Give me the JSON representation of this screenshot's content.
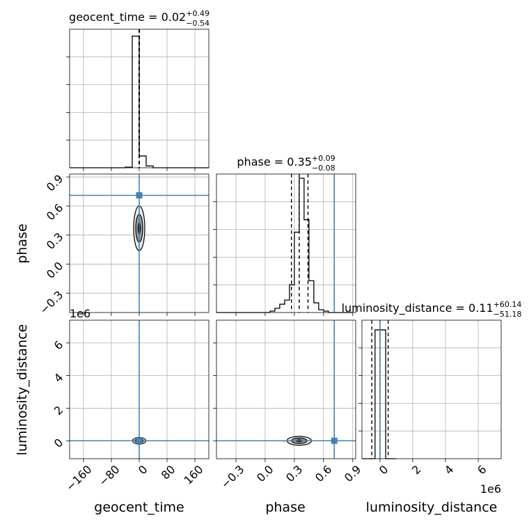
{
  "chart_data": {
    "type": "scatter",
    "subtype": "corner-plot",
    "parameters": [
      {
        "name": "geocent_time",
        "median": 0.02,
        "plus": "+0.49",
        "minus": "−0.54",
        "title_main": "geocent_time = 0.02",
        "ticks": [
          -160,
          -80,
          0,
          80,
          160
        ],
        "tick_labels": [
          "−160",
          "−80",
          "0",
          "80",
          "160"
        ],
        "range": [
          -200,
          200
        ],
        "truth": 0.0
      },
      {
        "name": "phase",
        "median": 0.35,
        "plus": "+0.09",
        "minus": "−0.08",
        "title_main": "phase = 0.35",
        "ticks": [
          -0.3,
          0.0,
          0.3,
          0.6,
          0.9
        ],
        "tick_labels": [
          "−0.3",
          "0.0",
          "0.3",
          "0.6",
          "0.9"
        ],
        "range": [
          -0.5,
          0.93
        ],
        "truth": 0.71,
        "quantiles": [
          0.27,
          0.35,
          0.44
        ]
      },
      {
        "name": "luminosity_distance",
        "median": 0.11,
        "plus": "+60.14",
        "minus": "−51.18",
        "title_main": "luminosity_distance = 0.11",
        "ticks": [
          0,
          2,
          4,
          6
        ],
        "tick_labels": [
          "0",
          "2",
          "4",
          "6"
        ],
        "offset": "1e6",
        "range": [
          -1.1,
          7.4
        ],
        "truth": 0.0
      }
    ],
    "histograms": {
      "geocent_time": {
        "edges": [
          -200,
          -180,
          -160,
          -140,
          -120,
          -100,
          -80,
          -60,
          -40,
          -20,
          0,
          20,
          40,
          60,
          80,
          100,
          120,
          140,
          160,
          180,
          200
        ],
        "counts": [
          0,
          0,
          0,
          0,
          0,
          0,
          0,
          0,
          0.004,
          0.95,
          0.085,
          0.013,
          0,
          0,
          0,
          0,
          0,
          0,
          0,
          0
        ]
      },
      "phase": {
        "edges": [
          -0.5,
          -0.45,
          -0.4,
          -0.35,
          -0.3,
          -0.25,
          -0.2,
          -0.15,
          -0.1,
          -0.05,
          0.0,
          0.05,
          0.1,
          0.15,
          0.2,
          0.25,
          0.3,
          0.35,
          0.4,
          0.45,
          0.5,
          0.55,
          0.6,
          0.65,
          0.7,
          0.75,
          0.8,
          0.85,
          0.9
        ],
        "counts": [
          0,
          0,
          0,
          0,
          0,
          0,
          0,
          0,
          0,
          0,
          0,
          0.01,
          0.03,
          0.06,
          0.09,
          0.2,
          0.58,
          0.97,
          0.67,
          0.23,
          0.07,
          0.02,
          0.01,
          0,
          0,
          0,
          0,
          0
        ]
      },
      "luminosity_distance": {
        "edges": [
          -1.1,
          -0.3,
          0.35,
          1.0
        ],
        "counts": [
          0,
          0.93,
          0
        ]
      }
    },
    "quantile_lines": {
      "geocent_time": [
        -0.52,
        0.02,
        0.51
      ],
      "phase": [
        0.27,
        0.35,
        0.44
      ],
      "luminosity_distance": [
        -0.5,
        0.0,
        0.5
      ]
    },
    "grid": true,
    "truth_color": "#4682b4",
    "hist_color": "#000000"
  }
}
